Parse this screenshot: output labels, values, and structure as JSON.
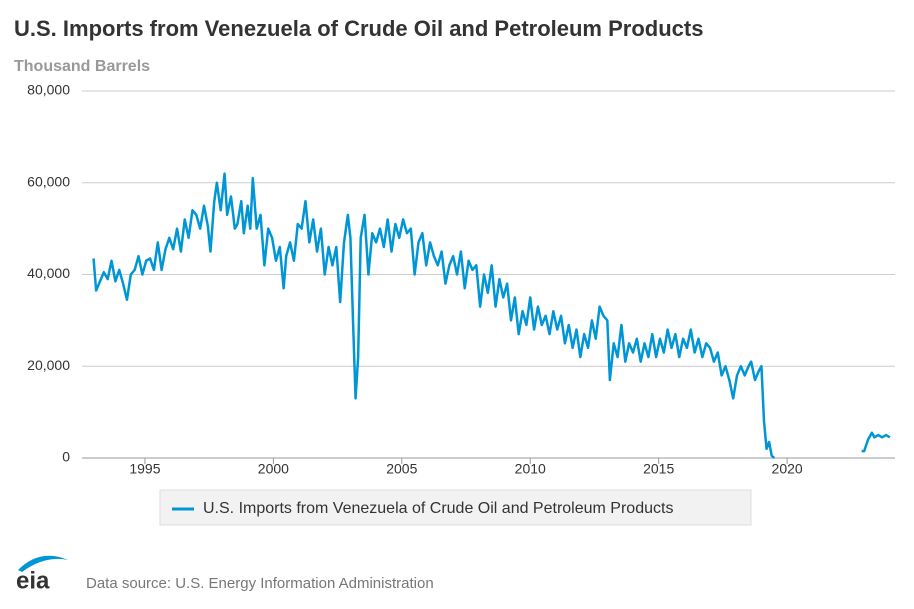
{
  "chart_data": {
    "type": "line",
    "title": "U.S. Imports from Venezuela of Crude Oil and Petroleum Products",
    "subtitle": "Thousand Barrels",
    "source": "Data source: U.S. Energy Information Administration",
    "logo": "eia",
    "legend": "bottom",
    "grid": true,
    "x": [
      1993.0,
      1993.1,
      1993.25,
      1993.4,
      1993.55,
      1993.7,
      1993.85,
      1994.0,
      1994.15,
      1994.3,
      1994.45,
      1994.6,
      1994.75,
      1994.9,
      1995.05,
      1995.2,
      1995.35,
      1995.5,
      1995.65,
      1995.8,
      1995.95,
      1996.1,
      1996.25,
      1996.4,
      1996.55,
      1996.7,
      1996.85,
      1997.0,
      1997.15,
      1997.3,
      1997.45,
      1997.55,
      1997.7,
      1997.8,
      1997.95,
      1998.1,
      1998.2,
      1998.35,
      1998.5,
      1998.6,
      1998.75,
      1998.85,
      1999.0,
      1999.1,
      1999.2,
      1999.35,
      1999.5,
      1999.65,
      1999.8,
      1999.95,
      2000.1,
      2000.25,
      2000.4,
      2000.5,
      2000.65,
      2000.8,
      2000.95,
      2001.1,
      2001.25,
      2001.4,
      2001.55,
      2001.7,
      2001.85,
      2002.0,
      2002.15,
      2002.3,
      2002.45,
      2002.6,
      2002.75,
      2002.9,
      2003.0,
      2003.1,
      2003.2,
      2003.3,
      2003.4,
      2003.55,
      2003.7,
      2003.85,
      2004.0,
      2004.15,
      2004.3,
      2004.45,
      2004.6,
      2004.75,
      2004.9,
      2005.05,
      2005.2,
      2005.35,
      2005.5,
      2005.65,
      2005.8,
      2005.95,
      2006.1,
      2006.25,
      2006.4,
      2006.55,
      2006.7,
      2006.85,
      2007.0,
      2007.15,
      2007.3,
      2007.45,
      2007.6,
      2007.75,
      2007.9,
      2008.05,
      2008.2,
      2008.35,
      2008.5,
      2008.65,
      2008.8,
      2008.95,
      2009.1,
      2009.25,
      2009.4,
      2009.55,
      2009.7,
      2009.85,
      2010.0,
      2010.15,
      2010.3,
      2010.45,
      2010.6,
      2010.75,
      2010.9,
      2011.05,
      2011.2,
      2011.35,
      2011.5,
      2011.65,
      2011.8,
      2011.95,
      2012.1,
      2012.25,
      2012.4,
      2012.55,
      2012.7,
      2012.85,
      2013.0,
      2013.1,
      2013.25,
      2013.4,
      2013.55,
      2013.7,
      2013.85,
      2014.0,
      2014.15,
      2014.3,
      2014.45,
      2014.6,
      2014.75,
      2014.9,
      2015.05,
      2015.2,
      2015.35,
      2015.5,
      2015.65,
      2015.8,
      2015.95,
      2016.1,
      2016.25,
      2016.4,
      2016.55,
      2016.7,
      2016.85,
      2017.0,
      2017.15,
      2017.3,
      2017.45,
      2017.6,
      2017.75,
      2017.9,
      2018.05,
      2018.2,
      2018.35,
      2018.5,
      2018.6,
      2018.75,
      2018.9,
      2019.0,
      2019.1,
      2019.2,
      2019.3,
      2019.4,
      2019.5,
      2021.0,
      2022.9,
      2023.0,
      2023.15,
      2023.3,
      2023.4,
      2023.55,
      2023.7,
      2023.85,
      2024.0
    ],
    "series": [
      {
        "name": "U.S. Imports from Venezuela of Crude Oil and Petroleum Products",
        "color": "#0096d6",
        "values": [
          43500,
          36500,
          38500,
          40500,
          39000,
          43000,
          38500,
          41000,
          38000,
          34500,
          40000,
          41000,
          44000,
          40000,
          43000,
          43500,
          41000,
          47000,
          41000,
          45500,
          48000,
          45500,
          50000,
          45000,
          52000,
          48000,
          54000,
          53000,
          50000,
          55000,
          50500,
          45000,
          56000,
          60000,
          54000,
          62000,
          53000,
          57000,
          50000,
          51000,
          56000,
          49000,
          55000,
          50000,
          61000,
          50000,
          53000,
          42000,
          50000,
          48000,
          43000,
          46000,
          37000,
          44000,
          47000,
          43000,
          51000,
          50000,
          56000,
          47000,
          52000,
          45000,
          50000,
          40000,
          46000,
          42000,
          46000,
          34000,
          47000,
          53000,
          48000,
          30000,
          13000,
          22000,
          48000,
          53000,
          40000,
          49000,
          47000,
          50000,
          46000,
          52000,
          45000,
          51000,
          48000,
          52000,
          49000,
          50000,
          40000,
          47000,
          49000,
          42000,
          47000,
          44000,
          42000,
          45000,
          38000,
          42000,
          44000,
          40000,
          45000,
          37000,
          43000,
          41000,
          42000,
          33000,
          40000,
          36000,
          42000,
          33000,
          39000,
          35000,
          38000,
          30000,
          35000,
          27000,
          32000,
          29000,
          35000,
          28000,
          33000,
          29000,
          31000,
          27000,
          32000,
          28000,
          31000,
          25000,
          29000,
          24000,
          28000,
          22000,
          27000,
          24000,
          30000,
          26000,
          33000,
          31000,
          30000,
          17000,
          25000,
          22000,
          29000,
          21000,
          25000,
          23000,
          26000,
          21000,
          25000,
          22000,
          27000,
          22000,
          26000,
          23000,
          28000,
          24000,
          27000,
          22000,
          26000,
          24000,
          28000,
          23000,
          26000,
          22000,
          25000,
          24000,
          21000,
          23000,
          18000,
          20000,
          17000,
          13000,
          18000,
          20000,
          18000,
          20000,
          21000,
          17000,
          19000,
          20000,
          8000,
          2000,
          3500,
          500,
          0,
          null,
          1500,
          1500,
          4000,
          5500,
          4500,
          5000,
          4500,
          5000,
          4500
        ]
      }
    ],
    "xlim": [
      1992.55,
      2024.2
    ],
    "xticks": [
      1995,
      2000,
      2005,
      2010,
      2015,
      2020
    ],
    "ylim": [
      0,
      80000
    ],
    "yticks": [
      0,
      {
        "value": 20000,
        "label": "20,000"
      },
      {
        "value": 40000,
        "label": "40,000"
      },
      {
        "value": 60000,
        "label": "60,000"
      },
      {
        "value": 80000,
        "label": "80,000"
      }
    ]
  }
}
